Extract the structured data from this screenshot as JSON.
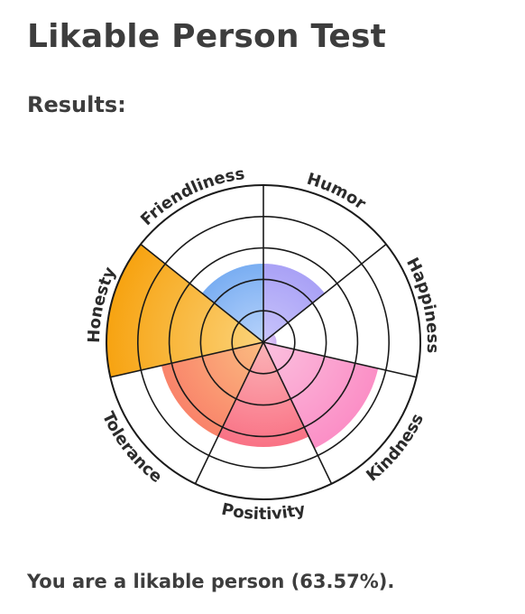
{
  "page": {
    "title": "Likable Person Test",
    "results_heading": "Results:",
    "summary": "You are a likable person (63.57%)."
  },
  "chart_data": {
    "type": "polar-area",
    "title": "",
    "categories": [
      "Humor",
      "Happiness",
      "Kindness",
      "Positivity",
      "Tolerance",
      "Honesty",
      "Friendliness"
    ],
    "values": [
      3,
      0.5,
      4.5,
      4,
      4,
      6,
      3
    ],
    "rlim": [
      0,
      6
    ],
    "ring_count": 5,
    "colors": {
      "Humor": [
        "#c8c4fb",
        "#a9a1f6"
      ],
      "Happiness": [
        "#e9d7fb",
        "#cdb2f3"
      ],
      "Kindness": [
        "#fbc1df",
        "#fb8fc6"
      ],
      "Positivity": [
        "#fbb4b8",
        "#f97285"
      ],
      "Tolerance": [
        "#fbbc80",
        "#f9836a"
      ],
      "Honesty": [
        "#fbd37a",
        "#f7a311"
      ],
      "Friendliness": [
        "#b8d3fb",
        "#7aaef2"
      ]
    },
    "grid_color": "#1a1a1a"
  }
}
